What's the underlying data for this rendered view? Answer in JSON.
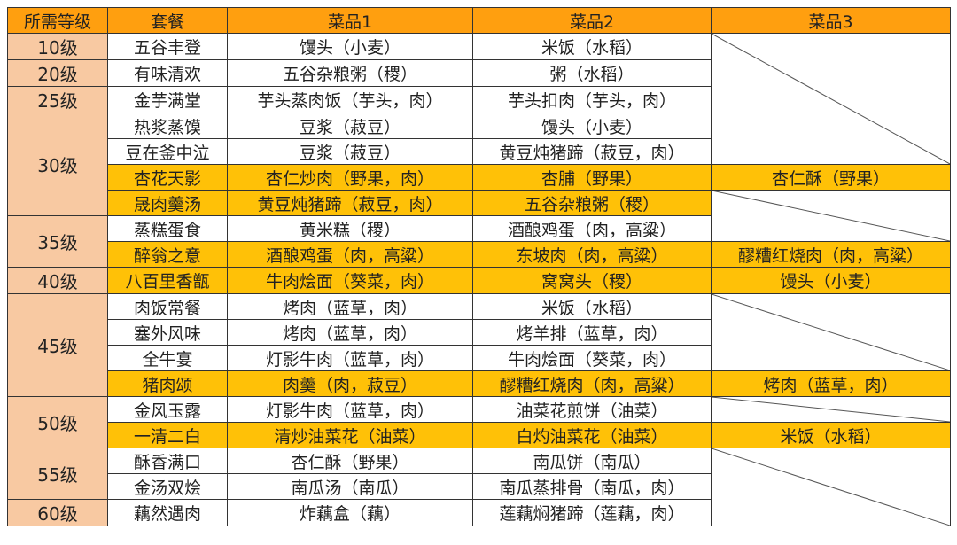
{
  "colors": {
    "header": "#FF9F0F",
    "level": "#F8C9A2",
    "highlight": "#FFC107"
  },
  "header": [
    "所需等级",
    "套餐",
    "菜品1",
    "菜品2",
    "菜品3"
  ],
  "groups": [
    {
      "level": "10级",
      "rows": [
        {
          "set": "五谷丰登",
          "dish1": "馒头（小麦）",
          "dish2": "米饭（水稻）",
          "dish3": null,
          "highlight": false
        }
      ]
    },
    {
      "level": "20级",
      "rows": [
        {
          "set": "有味清欢",
          "dish1": "五谷杂粮粥（稷）",
          "dish2": "粥（水稻）",
          "dish3": null,
          "highlight": false
        }
      ]
    },
    {
      "level": "25级",
      "rows": [
        {
          "set": "金芋满堂",
          "dish1": "芋头蒸肉饭（芋头，肉）",
          "dish2": "芋头扣肉（芋头，肉）",
          "dish3": null,
          "highlight": false
        }
      ]
    },
    {
      "level": "30级",
      "rows": [
        {
          "set": "热浆蒸馍",
          "dish1": "豆浆（菽豆）",
          "dish2": "馒头（小麦）",
          "dish3": null,
          "highlight": false
        },
        {
          "set": "豆在釜中泣",
          "dish1": "豆浆（菽豆）",
          "dish2": "黄豆炖猪蹄（菽豆，肉）",
          "dish3": null,
          "highlight": false
        },
        {
          "set": "杏花天影",
          "dish1": "杏仁炒肉（野果，肉）",
          "dish2": "杏脯（野果）",
          "dish3": "杏仁酥（野果）",
          "highlight": true
        },
        {
          "set": "晟肉羹汤",
          "dish1": "黄豆炖猪蹄（菽豆，肉）",
          "dish2": "五谷杂粮粥（稷）",
          "dish3": null,
          "highlight": true
        }
      ]
    },
    {
      "level": "35级",
      "rows": [
        {
          "set": "蒸糕蛋食",
          "dish1": "黄米糕（稷）",
          "dish2": "酒酿鸡蛋（肉，高粱）",
          "dish3": null,
          "highlight": false
        },
        {
          "set": "醉翁之意",
          "dish1": "酒酿鸡蛋（肉，高粱）",
          "dish2": "东坡肉（肉，高粱）",
          "dish3": "醪糟红烧肉（肉，高粱）",
          "highlight": true
        }
      ]
    },
    {
      "level": "40级",
      "rows": [
        {
          "set": "八百里香甑",
          "dish1": "牛肉烩面（葵菜，肉）",
          "dish2": "窝窝头（稷）",
          "dish3": "馒头（小麦）",
          "highlight": true
        }
      ]
    },
    {
      "level": "45级",
      "rows": [
        {
          "set": "肉饭常餐",
          "dish1": "烤肉（蓝草，肉）",
          "dish2": "米饭（水稻）",
          "dish3": null,
          "highlight": false
        },
        {
          "set": "塞外风味",
          "dish1": "烤肉（蓝草，肉）",
          "dish2": "烤羊排（蓝草，肉）",
          "dish3": null,
          "highlight": false
        },
        {
          "set": "全牛宴",
          "dish1": "灯影牛肉（蓝草，肉）",
          "dish2": "牛肉烩面（葵菜，肉）",
          "dish3": null,
          "highlight": false
        },
        {
          "set": "猪肉颂",
          "dish1": "肉羹（肉，菽豆）",
          "dish2": "醪糟红烧肉（肉，高粱）",
          "dish3": "烤肉（蓝草，肉）",
          "highlight": true
        }
      ]
    },
    {
      "level": "50级",
      "rows": [
        {
          "set": "金风玉露",
          "dish1": "灯影牛肉（蓝草，肉）",
          "dish2": "油菜花煎饼（油菜）",
          "dish3": null,
          "highlight": false
        },
        {
          "set": "一清二白",
          "dish1": "清炒油菜花（油菜）",
          "dish2": "白灼油菜花（油菜）",
          "dish3": "米饭（水稻）",
          "highlight": true
        }
      ]
    },
    {
      "level": "55级",
      "rows": [
        {
          "set": "酥香满口",
          "dish1": "杏仁酥（野果）",
          "dish2": "南瓜饼（南瓜）",
          "dish3": null,
          "highlight": false
        },
        {
          "set": "金汤双烩",
          "dish1": "南瓜汤（南瓜）",
          "dish2": "南瓜蒸排骨（南瓜，肉）",
          "dish3": null,
          "highlight": false
        }
      ]
    },
    {
      "level": "60级",
      "rows": [
        {
          "set": "藕然遇肉",
          "dish1": "炸藕盒（藕）",
          "dish2": "莲藕焖猪蹄（莲藕，肉）",
          "dish3": null,
          "highlight": false
        }
      ]
    }
  ]
}
